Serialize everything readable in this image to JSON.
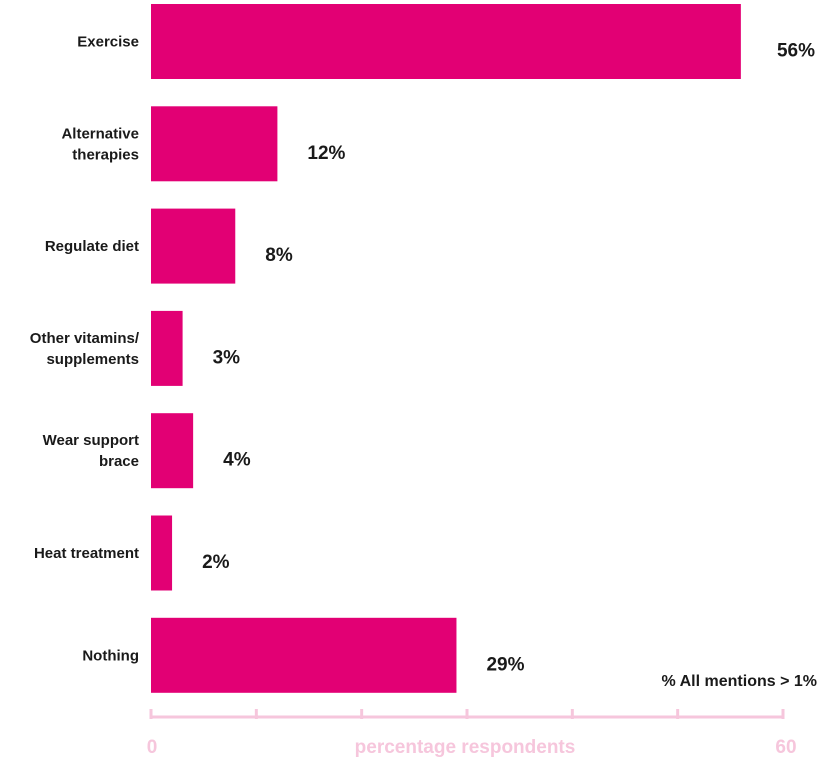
{
  "chart_data": {
    "type": "bar",
    "orientation": "horizontal",
    "categories": [
      [
        "Exercise"
      ],
      [
        "Alternative",
        "therapies"
      ],
      [
        "Regulate diet"
      ],
      [
        "Other vitamins/",
        "supplements"
      ],
      [
        "Wear support",
        "brace"
      ],
      [
        "Heat treatment"
      ],
      [
        "Nothing"
      ]
    ],
    "values": [
      56,
      12,
      8,
      3,
      4,
      2,
      29
    ],
    "value_labels": [
      "56%",
      "12%",
      "8%",
      "3%",
      "4%",
      "2%",
      "29%"
    ],
    "xlabel": "percentage respondents",
    "xlim": [
      0,
      60
    ],
    "x_tick_labels": [
      "0",
      "60"
    ],
    "tick_count": 7,
    "note": "% All mentions > 1%",
    "grid": false,
    "colors": {
      "bar": "#e20074",
      "axis": "#f6c6dc",
      "text": "#1a1a1a"
    }
  }
}
